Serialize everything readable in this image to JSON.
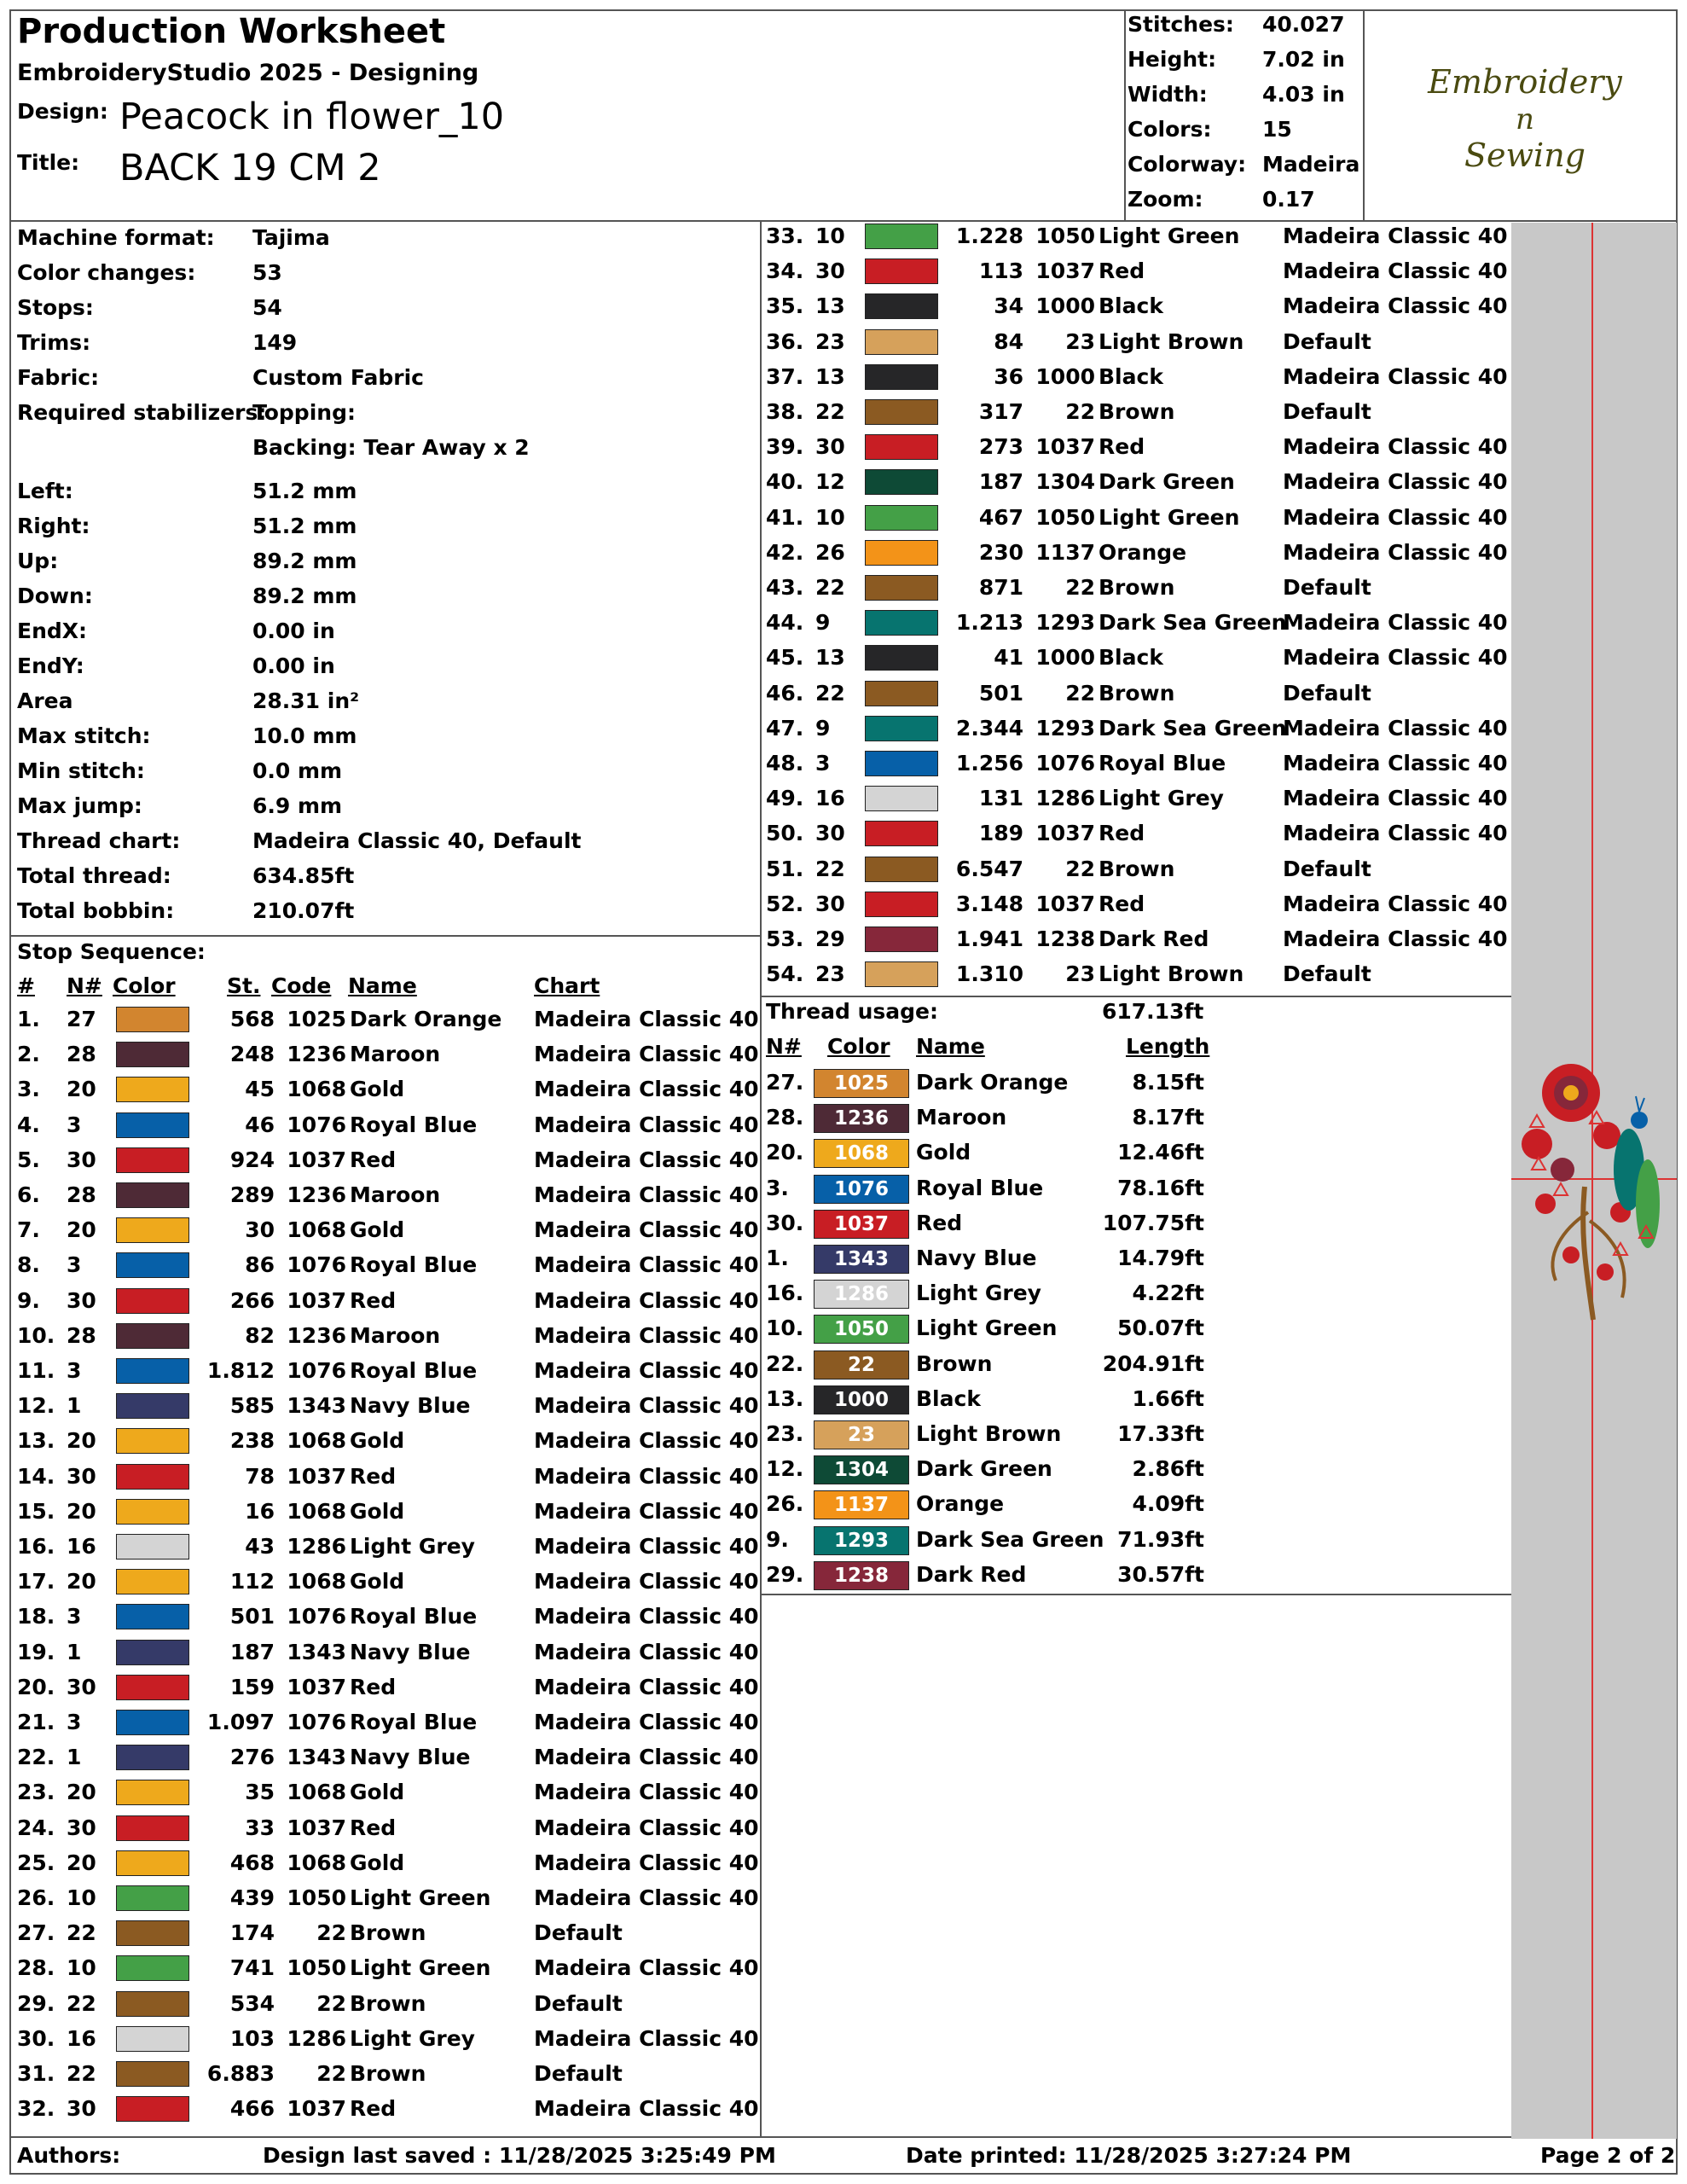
{
  "header": {
    "title": "Production Worksheet",
    "software": "EmbroideryStudio 2025 - Designing",
    "design_label": "Design:",
    "design_value": "Peacock in flower_10",
    "title_label": "Title:",
    "title_value": "BACK 19 CM 2"
  },
  "summary": [
    {
      "label": "Stitches:",
      "value": "40.027"
    },
    {
      "label": "Height:",
      "value": "7.02 in"
    },
    {
      "label": "Width:",
      "value": "4.03 in"
    },
    {
      "label": "Colors:",
      "value": "15"
    },
    {
      "label": "Colorway:",
      "value": "Madeira"
    },
    {
      "label": "Zoom:",
      "value": "0.17"
    }
  ],
  "logo": {
    "line1": "Embroidery",
    "line2": "n",
    "line3": "Sewing"
  },
  "details": [
    {
      "label": "Machine format:",
      "value": "Tajima"
    },
    {
      "label": "Color changes:",
      "value": "53"
    },
    {
      "label": "Stops:",
      "value": "54"
    },
    {
      "label": "Trims:",
      "value": "149"
    },
    {
      "label": "Fabric:",
      "value": "Custom Fabric"
    },
    {
      "label": "Required stabilizers:",
      "value": "Topping:"
    },
    {
      "label": "",
      "value": "Backing: Tear Away x 2"
    },
    {
      "label": "Left:",
      "value": "51.2 mm"
    },
    {
      "label": "Right:",
      "value": "51.2 mm"
    },
    {
      "label": "Up:",
      "value": "89.2 mm"
    },
    {
      "label": "Down:",
      "value": "89.2 mm"
    },
    {
      "label": "EndX:",
      "value": "0.00 in"
    },
    {
      "label": "EndY:",
      "value": "0.00 in"
    },
    {
      "label": "Area",
      "value": " 28.31 in²"
    },
    {
      "label": "Max stitch:",
      "value": "10.0 mm"
    },
    {
      "label": "Min stitch:",
      "value": "0.0 mm"
    },
    {
      "label": "Max jump:",
      "value": "6.9 mm"
    },
    {
      "label": "Thread chart:",
      "value": "Madeira Classic 40, Default"
    },
    {
      "label": "Total thread:",
      "value": "634.85ft"
    },
    {
      "label": "Total bobbin:",
      "value": "210.07ft"
    }
  ],
  "stop_sequence": {
    "title": "Stop Sequence:",
    "headers": {
      "num": "#",
      "n": "N#",
      "color": "Color",
      "st": "St.",
      "code": "Code",
      "name": "Name",
      "chart": "Chart"
    },
    "rows": [
      {
        "num": "1.",
        "n": "27",
        "color": "#D2852F",
        "st": "568",
        "code": "1025",
        "name": "Dark Orange",
        "chart": "Madeira Classic 40"
      },
      {
        "num": "2.",
        "n": "28",
        "color": "#4E2A36",
        "st": "248",
        "code": "1236",
        "name": "Maroon",
        "chart": "Madeira Classic 40"
      },
      {
        "num": "3.",
        "n": "20",
        "color": "#EEA91C",
        "st": "45",
        "code": "1068",
        "name": "Gold",
        "chart": "Madeira Classic 40"
      },
      {
        "num": "4.",
        "n": "3",
        "color": "#0760A8",
        "st": "46",
        "code": "1076",
        "name": "Royal Blue",
        "chart": "Madeira Classic 40"
      },
      {
        "num": "5.",
        "n": "30",
        "color": "#C81E24",
        "st": "924",
        "code": "1037",
        "name": "Red",
        "chart": "Madeira Classic 40"
      },
      {
        "num": "6.",
        "n": "28",
        "color": "#4E2A36",
        "st": "289",
        "code": "1236",
        "name": "Maroon",
        "chart": "Madeira Classic 40"
      },
      {
        "num": "7.",
        "n": "20",
        "color": "#EEA91C",
        "st": "30",
        "code": "1068",
        "name": "Gold",
        "chart": "Madeira Classic 40"
      },
      {
        "num": "8.",
        "n": "3",
        "color": "#0760A8",
        "st": "86",
        "code": "1076",
        "name": "Royal Blue",
        "chart": "Madeira Classic 40"
      },
      {
        "num": "9.",
        "n": "30",
        "color": "#C81E24",
        "st": "266",
        "code": "1037",
        "name": "Red",
        "chart": "Madeira Classic 40"
      },
      {
        "num": "10.",
        "n": "28",
        "color": "#4E2A36",
        "st": "82",
        "code": "1236",
        "name": "Maroon",
        "chart": "Madeira Classic 40"
      },
      {
        "num": "11.",
        "n": "3",
        "color": "#0760A8",
        "st": "1.812",
        "code": "1076",
        "name": "Royal Blue",
        "chart": "Madeira Classic 40"
      },
      {
        "num": "12.",
        "n": "1",
        "color": "#353A68",
        "st": "585",
        "code": "1343",
        "name": "Navy Blue",
        "chart": "Madeira Classic 40"
      },
      {
        "num": "13.",
        "n": "20",
        "color": "#EEA91C",
        "st": "238",
        "code": "1068",
        "name": "Gold",
        "chart": "Madeira Classic 40"
      },
      {
        "num": "14.",
        "n": "30",
        "color": "#C81E24",
        "st": "78",
        "code": "1037",
        "name": "Red",
        "chart": "Madeira Classic 40"
      },
      {
        "num": "15.",
        "n": "20",
        "color": "#EEA91C",
        "st": "16",
        "code": "1068",
        "name": "Gold",
        "chart": "Madeira Classic 40"
      },
      {
        "num": "16.",
        "n": "16",
        "color": "#D4D4D4",
        "st": "43",
        "code": "1286",
        "name": "Light Grey",
        "chart": "Madeira Classic 40"
      },
      {
        "num": "17.",
        "n": "20",
        "color": "#EEA91C",
        "st": "112",
        "code": "1068",
        "name": "Gold",
        "chart": "Madeira Classic 40"
      },
      {
        "num": "18.",
        "n": "3",
        "color": "#0760A8",
        "st": "501",
        "code": "1076",
        "name": "Royal Blue",
        "chart": "Madeira Classic 40"
      },
      {
        "num": "19.",
        "n": "1",
        "color": "#353A68",
        "st": "187",
        "code": "1343",
        "name": "Navy Blue",
        "chart": "Madeira Classic 40"
      },
      {
        "num": "20.",
        "n": "30",
        "color": "#C81E24",
        "st": "159",
        "code": "1037",
        "name": "Red",
        "chart": "Madeira Classic 40"
      },
      {
        "num": "21.",
        "n": "3",
        "color": "#0760A8",
        "st": "1.097",
        "code": "1076",
        "name": "Royal Blue",
        "chart": "Madeira Classic 40"
      },
      {
        "num": "22.",
        "n": "1",
        "color": "#353A68",
        "st": "276",
        "code": "1343",
        "name": "Navy Blue",
        "chart": "Madeira Classic 40"
      },
      {
        "num": "23.",
        "n": "20",
        "color": "#EEA91C",
        "st": "35",
        "code": "1068",
        "name": "Gold",
        "chart": "Madeira Classic 40"
      },
      {
        "num": "24.",
        "n": "30",
        "color": "#C81E24",
        "st": "33",
        "code": "1037",
        "name": "Red",
        "chart": "Madeira Classic 40"
      },
      {
        "num": "25.",
        "n": "20",
        "color": "#EEA91C",
        "st": "468",
        "code": "1068",
        "name": "Gold",
        "chart": "Madeira Classic 40"
      },
      {
        "num": "26.",
        "n": "10",
        "color": "#44A047",
        "st": "439",
        "code": "1050",
        "name": "Light Green",
        "chart": "Madeira Classic 40"
      },
      {
        "num": "27.",
        "n": "22",
        "color": "#8B5A22",
        "st": "174",
        "code": "22",
        "name": "Brown",
        "chart": "Default"
      },
      {
        "num": "28.",
        "n": "10",
        "color": "#44A047",
        "st": "741",
        "code": "1050",
        "name": "Light Green",
        "chart": "Madeira Classic 40"
      },
      {
        "num": "29.",
        "n": "22",
        "color": "#8B5A22",
        "st": "534",
        "code": "22",
        "name": "Brown",
        "chart": "Default"
      },
      {
        "num": "30.",
        "n": "16",
        "color": "#D4D4D4",
        "st": "103",
        "code": "1286",
        "name": "Light Grey",
        "chart": "Madeira Classic 40"
      },
      {
        "num": "31.",
        "n": "22",
        "color": "#8B5A22",
        "st": "6.883",
        "code": "22",
        "name": "Brown",
        "chart": "Default"
      },
      {
        "num": "32.",
        "n": "30",
        "color": "#C81E24",
        "st": "466",
        "code": "1037",
        "name": "Red",
        "chart": "Madeira Classic 40"
      },
      {
        "num": "33.",
        "n": "10",
        "color": "#44A047",
        "st": "1.228",
        "code": "1050",
        "name": "Light Green",
        "chart": "Madeira Classic 40"
      },
      {
        "num": "34.",
        "n": "30",
        "color": "#C81E24",
        "st": "113",
        "code": "1037",
        "name": "Red",
        "chart": "Madeira Classic 40"
      },
      {
        "num": "35.",
        "n": "13",
        "color": "#262628",
        "st": "34",
        "code": "1000",
        "name": "Black",
        "chart": "Madeira Classic 40"
      },
      {
        "num": "36.",
        "n": "23",
        "color": "#D6A15B",
        "st": "84",
        "code": "23",
        "name": "Light Brown",
        "chart": "Default"
      },
      {
        "num": "37.",
        "n": "13",
        "color": "#262628",
        "st": "36",
        "code": "1000",
        "name": "Black",
        "chart": "Madeira Classic 40"
      },
      {
        "num": "38.",
        "n": "22",
        "color": "#8B5A22",
        "st": "317",
        "code": "22",
        "name": "Brown",
        "chart": "Default"
      },
      {
        "num": "39.",
        "n": "30",
        "color": "#C81E24",
        "st": "273",
        "code": "1037",
        "name": "Red",
        "chart": "Madeira Classic 40"
      },
      {
        "num": "40.",
        "n": "12",
        "color": "#0E4A36",
        "st": "187",
        "code": "1304",
        "name": "Dark Green",
        "chart": "Madeira Classic 40"
      },
      {
        "num": "41.",
        "n": "10",
        "color": "#44A047",
        "st": "467",
        "code": "1050",
        "name": "Light Green",
        "chart": "Madeira Classic 40"
      },
      {
        "num": "42.",
        "n": "26",
        "color": "#F39318",
        "st": "230",
        "code": "1137",
        "name": "Orange",
        "chart": "Madeira Classic 40"
      },
      {
        "num": "43.",
        "n": "22",
        "color": "#8B5A22",
        "st": "871",
        "code": "22",
        "name": "Brown",
        "chart": "Default"
      },
      {
        "num": "44.",
        "n": "9",
        "color": "#07746F",
        "st": "1.213",
        "code": "1293",
        "name": "Dark Sea Green",
        "chart": "Madeira Classic 40"
      },
      {
        "num": "45.",
        "n": "13",
        "color": "#262628",
        "st": "41",
        "code": "1000",
        "name": "Black",
        "chart": "Madeira Classic 40"
      },
      {
        "num": "46.",
        "n": "22",
        "color": "#8B5A22",
        "st": "501",
        "code": "22",
        "name": "Brown",
        "chart": "Default"
      },
      {
        "num": "47.",
        "n": "9",
        "color": "#07746F",
        "st": "2.344",
        "code": "1293",
        "name": "Dark Sea Green",
        "chart": "Madeira Classic 40"
      },
      {
        "num": "48.",
        "n": "3",
        "color": "#0760A8",
        "st": "1.256",
        "code": "1076",
        "name": "Royal Blue",
        "chart": "Madeira Classic 40"
      },
      {
        "num": "49.",
        "n": "16",
        "color": "#D4D4D4",
        "st": "131",
        "code": "1286",
        "name": "Light Grey",
        "chart": "Madeira Classic 40"
      },
      {
        "num": "50.",
        "n": "30",
        "color": "#C81E24",
        "st": "189",
        "code": "1037",
        "name": "Red",
        "chart": "Madeira Classic 40"
      },
      {
        "num": "51.",
        "n": "22",
        "color": "#8B5A22",
        "st": "6.547",
        "code": "22",
        "name": "Brown",
        "chart": "Default"
      },
      {
        "num": "52.",
        "n": "30",
        "color": "#C81E24",
        "st": "3.148",
        "code": "1037",
        "name": "Red",
        "chart": "Madeira Classic 40"
      },
      {
        "num": "53.",
        "n": "29",
        "color": "#86273A",
        "st": "1.941",
        "code": "1238",
        "name": "Dark Red",
        "chart": "Madeira Classic 40"
      },
      {
        "num": "54.",
        "n": "23",
        "color": "#D6A15B",
        "st": "1.310",
        "code": "23",
        "name": "Light Brown",
        "chart": "Default"
      }
    ]
  },
  "thread_usage": {
    "title": "Thread usage:",
    "total": "617.13ft",
    "headers": {
      "n": "N#",
      "color": "Color",
      "name": "Name",
      "length": "Length"
    },
    "rows": [
      {
        "n": "27.",
        "color": "#D2852F",
        "code": "1025",
        "name": "Dark Orange",
        "length": "8.15ft"
      },
      {
        "n": "28.",
        "color": "#4E2A36",
        "code": "1236",
        "name": "Maroon",
        "length": "8.17ft"
      },
      {
        "n": "20.",
        "color": "#EEA91C",
        "code": "1068",
        "name": "Gold",
        "length": "12.46ft"
      },
      {
        "n": "3.",
        "color": "#0760A8",
        "code": "1076",
        "name": "Royal Blue",
        "length": "78.16ft"
      },
      {
        "n": "30.",
        "color": "#C81E24",
        "code": "1037",
        "name": "Red",
        "length": "107.75ft"
      },
      {
        "n": "1.",
        "color": "#353A68",
        "code": "1343",
        "name": "Navy Blue",
        "length": "14.79ft"
      },
      {
        "n": "16.",
        "color": "#D4D4D4",
        "code": "1286",
        "name": "Light Grey",
        "length": "4.22ft"
      },
      {
        "n": "10.",
        "color": "#44A047",
        "code": "1050",
        "name": "Light Green",
        "length": "50.07ft"
      },
      {
        "n": "22.",
        "color": "#8B5A22",
        "code": "22",
        "name": "Brown",
        "length": "204.91ft"
      },
      {
        "n": "13.",
        "color": "#262628",
        "code": "1000",
        "name": "Black",
        "length": "1.66ft"
      },
      {
        "n": "23.",
        "color": "#D6A15B",
        "code": "23",
        "name": "Light Brown",
        "length": "17.33ft"
      },
      {
        "n": "12.",
        "color": "#0E4A36",
        "code": "1304",
        "name": "Dark Green",
        "length": "2.86ft"
      },
      {
        "n": "26.",
        "color": "#F39318",
        "code": "1137",
        "name": "Orange",
        "length": "4.09ft"
      },
      {
        "n": "9.",
        "color": "#07746F",
        "code": "1293",
        "name": "Dark Sea Green",
        "length": "71.93ft"
      },
      {
        "n": "29.",
        "color": "#86273A",
        "code": "1238",
        "name": "Dark Red",
        "length": "30.57ft"
      }
    ]
  },
  "footer": {
    "authors": "Authors:",
    "saved": "Design last saved : 11/28/2025 3:25:49 PM",
    "printed": "Date printed: 11/28/2025 3:27:24 PM",
    "page": "Page 2 of 2"
  }
}
